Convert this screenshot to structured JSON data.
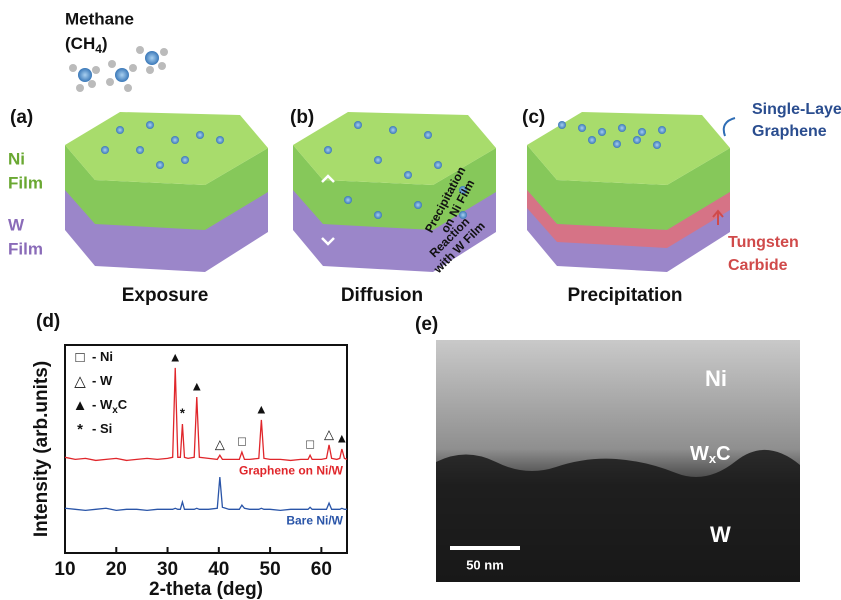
{
  "figure": {
    "methane": {
      "name": "Methane",
      "formula_start": "(CH",
      "formula_sub": "4",
      "formula_end": ")"
    },
    "panels": {
      "a": "(a)",
      "b": "(b)",
      "c": "(c)",
      "d": "(d)",
      "e": "(e)"
    },
    "layers": {
      "ni": [
        "Ni",
        "Film"
      ],
      "w": [
        "W",
        "Film"
      ]
    },
    "captions": [
      "Exposure",
      "Diffusion",
      "Precipitation"
    ],
    "diffusion_notes": {
      "precipitation": [
        "Precipitation",
        "on Ni Film"
      ],
      "reaction": [
        "Reaction",
        "with W Film"
      ]
    },
    "graphene_label": [
      "Single-Layer",
      "Graphene"
    ],
    "carbide_label": [
      "Tungsten",
      "Carbide"
    ],
    "tem": {
      "ni": "Ni",
      "wxc_start": "W",
      "wxc_sub": "x",
      "wxc_end": "C",
      "w": "W",
      "scale": "50 nm"
    }
  },
  "chart_data": {
    "type": "line",
    "xlabel": "2-theta (deg)",
    "ylabel": "Intensity (arb.units)",
    "xlim": [
      10,
      65
    ],
    "xticks": [
      10,
      20,
      30,
      40,
      50,
      60
    ],
    "ylim": [
      0,
      100
    ],
    "x": [
      10,
      12,
      14,
      16,
      18,
      20,
      22,
      24,
      26,
      28,
      30,
      31,
      31.5,
      32,
      32.5,
      32.9,
      33.3,
      34,
      35.2,
      35.7,
      36.2,
      38,
      39.7,
      40.2,
      40.7,
      42,
      44,
      44.5,
      45,
      46,
      47.8,
      48.3,
      48.8,
      50,
      52,
      54,
      56,
      57.4,
      57.8,
      58.2,
      60,
      61,
      61.5,
      62,
      63,
      63.6,
      64,
      64.5,
      65
    ],
    "series": [
      {
        "name": "Graphene on Ni/W",
        "color": "#e0262b",
        "values": [
          46,
          45,
          45.5,
          44.5,
          45,
          45.5,
          44.5,
          45,
          45.5,
          45,
          45.5,
          46,
          89,
          46,
          46,
          62,
          46,
          45.5,
          46,
          75,
          46,
          45.5,
          45,
          47,
          45,
          45,
          45,
          48.5,
          45,
          45,
          45.5,
          64,
          45.5,
          45,
          45,
          44.5,
          45,
          45,
          47,
          45,
          45,
          45.5,
          52,
          45.5,
          45,
          45.5,
          50,
          45.5,
          45
        ]
      },
      {
        "name": "Bare Ni/W",
        "color": "#2a55a8",
        "values": [
          21.5,
          21,
          20.5,
          21,
          21.5,
          20.5,
          21,
          21,
          20.5,
          21,
          21,
          21,
          21.5,
          21,
          21,
          24.5,
          21,
          21,
          21,
          21.5,
          21,
          21,
          21.5,
          36.5,
          22,
          21,
          21,
          23,
          21.5,
          21,
          21,
          21.5,
          21,
          21,
          20.5,
          21,
          21,
          21,
          22,
          21,
          21,
          21,
          24,
          21,
          21,
          21,
          21.5,
          21,
          21
        ]
      }
    ],
    "legend_items": [
      {
        "symbol": "□",
        "label": "- Ni"
      },
      {
        "symbol": "△",
        "label": "- W"
      },
      {
        "symbol": "▲",
        "label": "- W",
        "sub": "x",
        "label_end": "C"
      },
      {
        "symbol": "*",
        "label": "- Si"
      }
    ],
    "peak_markers": [
      {
        "x": 31.5,
        "symbol": "▲"
      },
      {
        "x": 32.9,
        "symbol": "*"
      },
      {
        "x": 35.7,
        "symbol": "▲"
      },
      {
        "x": 40.2,
        "symbol": "△"
      },
      {
        "x": 44.5,
        "symbol": "□"
      },
      {
        "x": 48.3,
        "symbol": "▲"
      },
      {
        "x": 57.8,
        "symbol": "□"
      },
      {
        "x": 61.5,
        "symbol": "△"
      },
      {
        "x": 64,
        "symbol": "▲"
      }
    ]
  }
}
